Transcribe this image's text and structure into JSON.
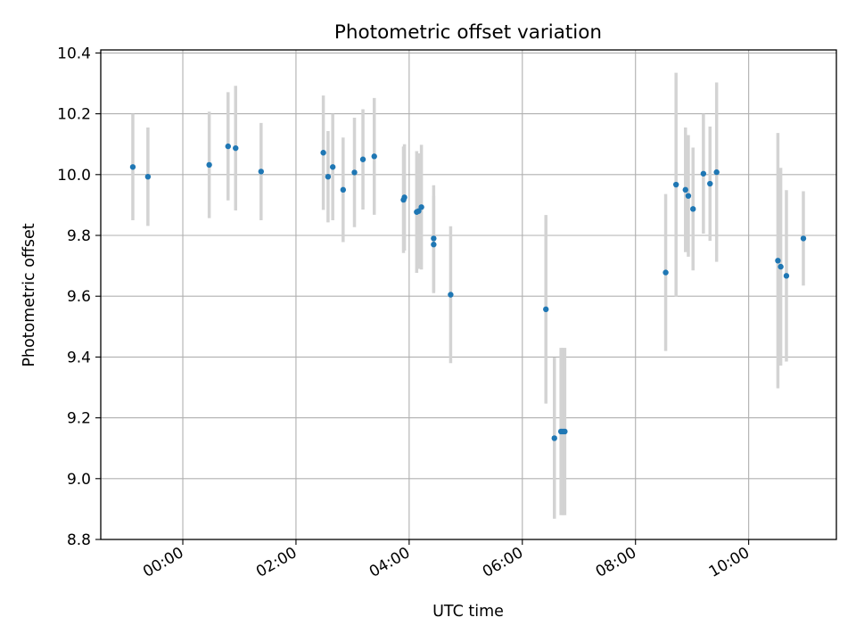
{
  "chart_data": {
    "type": "scatter",
    "title": "Photometric offset variation",
    "xlabel": "UTC time",
    "ylabel": "Photometric offset",
    "xlim_hours": [
      -1.45,
      11.55
    ],
    "ylim": [
      8.8,
      10.41
    ],
    "x_ticks": [
      {
        "value": 0,
        "label": "00:00"
      },
      {
        "value": 2,
        "label": "02:00"
      },
      {
        "value": 4,
        "label": "04:00"
      },
      {
        "value": 6,
        "label": "06:00"
      },
      {
        "value": 8,
        "label": "08:00"
      },
      {
        "value": 10,
        "label": "10:00"
      }
    ],
    "y_ticks": [
      {
        "value": 8.8,
        "label": "8.8"
      },
      {
        "value": 9.0,
        "label": "9.0"
      },
      {
        "value": 9.2,
        "label": "9.2"
      },
      {
        "value": 9.4,
        "label": "9.4"
      },
      {
        "value": 9.6,
        "label": "9.6"
      },
      {
        "value": 9.8,
        "label": "9.8"
      },
      {
        "value": 10.0,
        "label": "10.0"
      },
      {
        "value": 10.2,
        "label": "10.2"
      },
      {
        "value": 10.4,
        "label": "10.4"
      }
    ],
    "grid": true,
    "colors": {
      "point": "#1f77b4",
      "errorbar": "#d3d3d3",
      "grid": "#b0b0b0",
      "axes": "#000000"
    },
    "points": [
      {
        "time": "23:07",
        "y": 10.025,
        "err": 0.175
      },
      {
        "time": "23:23",
        "y": 9.993,
        "err": 0.162
      },
      {
        "time": "00:28",
        "y": 10.032,
        "err": 0.175
      },
      {
        "time": "00:48",
        "y": 10.093,
        "err": 0.178
      },
      {
        "time": "00:56",
        "y": 10.087,
        "err": 0.205
      },
      {
        "time": "01:23",
        "y": 10.01,
        "err": 0.16
      },
      {
        "time": "02:29",
        "y": 10.072,
        "err": 0.188
      },
      {
        "time": "02:34",
        "y": 9.993,
        "err": 0.15
      },
      {
        "time": "02:39",
        "y": 10.025,
        "err": 0.175
      },
      {
        "time": "02:50",
        "y": 9.95,
        "err": 0.172
      },
      {
        "time": "03:02",
        "y": 10.007,
        "err": 0.18
      },
      {
        "time": "03:11",
        "y": 10.05,
        "err": 0.165
      },
      {
        "time": "03:23",
        "y": 10.06,
        "err": 0.192
      },
      {
        "time": "03:54",
        "y": 9.917,
        "err": 0.175
      },
      {
        "time": "03:55",
        "y": 9.925,
        "err": 0.175
      },
      {
        "time": "04:08",
        "y": 9.877,
        "err": 0.2
      },
      {
        "time": "04:10",
        "y": 9.88,
        "err": 0.19
      },
      {
        "time": "04:13",
        "y": 9.893,
        "err": 0.205
      },
      {
        "time": "04:26",
        "y": 9.79,
        "err": 0.175
      },
      {
        "time": "04:26",
        "y": 9.77,
        "err": 0.16
      },
      {
        "time": "04:44",
        "y": 9.605,
        "err": 0.225
      },
      {
        "time": "06:25",
        "y": 9.557,
        "err": 0.31
      },
      {
        "time": "06:34",
        "y": 9.133,
        "err": 0.265
      },
      {
        "time": "06:41",
        "y": 9.155,
        "err": 0.275
      },
      {
        "time": "06:43",
        "y": 9.155,
        "err": 0.275
      },
      {
        "time": "06:45",
        "y": 9.155,
        "err": 0.275
      },
      {
        "time": "08:32",
        "y": 9.678,
        "err": 0.258
      },
      {
        "time": "08:43",
        "y": 9.967,
        "err": 0.368
      },
      {
        "time": "08:53",
        "y": 9.95,
        "err": 0.205
      },
      {
        "time": "08:56",
        "y": 9.93,
        "err": 0.2
      },
      {
        "time": "09:01",
        "y": 9.887,
        "err": 0.202
      },
      {
        "time": "09:12",
        "y": 10.003,
        "err": 0.197
      },
      {
        "time": "09:19",
        "y": 9.97,
        "err": 0.188
      },
      {
        "time": "09:26",
        "y": 10.008,
        "err": 0.295
      },
      {
        "time": "10:31",
        "y": 9.717,
        "err": 0.42
      },
      {
        "time": "10:34",
        "y": 9.697,
        "err": 0.325
      },
      {
        "time": "10:40",
        "y": 9.667,
        "err": 0.282
      },
      {
        "time": "10:58",
        "y": 9.79,
        "err": 0.155
      }
    ]
  }
}
